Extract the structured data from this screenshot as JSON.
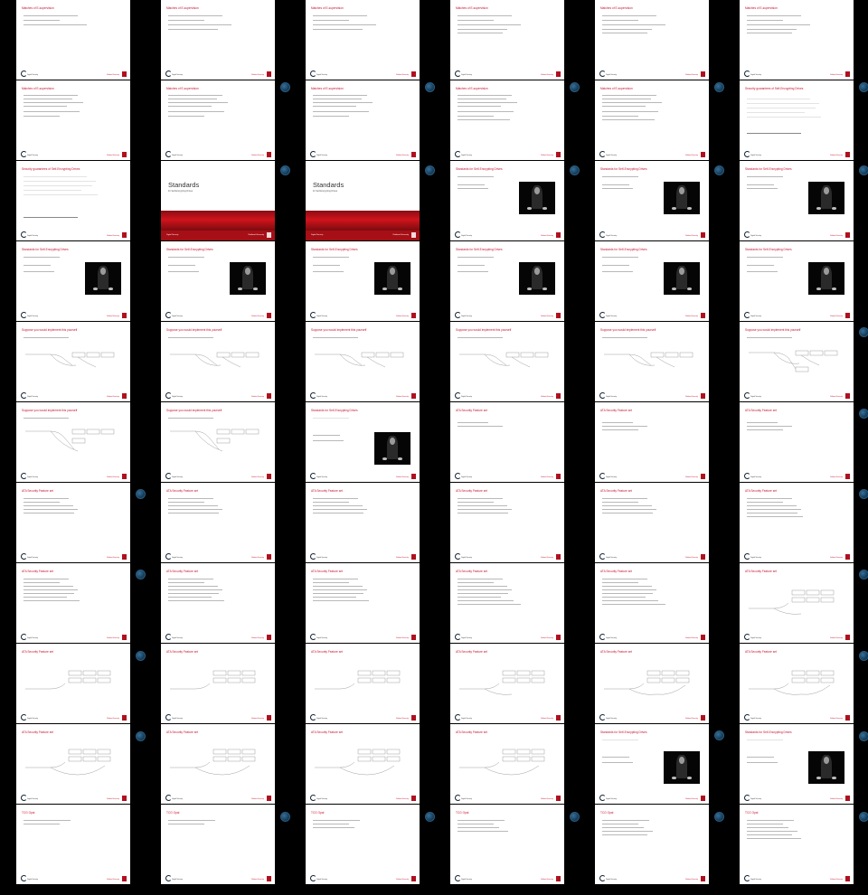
{
  "footer": {
    "logo_text": "Digital Security",
    "university": "Radboud University",
    "conference": "2017 / Digital Security"
  },
  "slides": {
    "mbc": "Matches of E-supervision",
    "self_enc": "Security guarantees of Self-Encrypting Drives",
    "standards": "Standards",
    "standards_sub": "for Self-Encrypting Drives",
    "std_for_sed": "Standards for Self-Encrypting Drives",
    "suppose": "Suppose you would implement this yourself",
    "ata": "ATA Security Feature set",
    "tcg": "TCG Opal"
  }
}
